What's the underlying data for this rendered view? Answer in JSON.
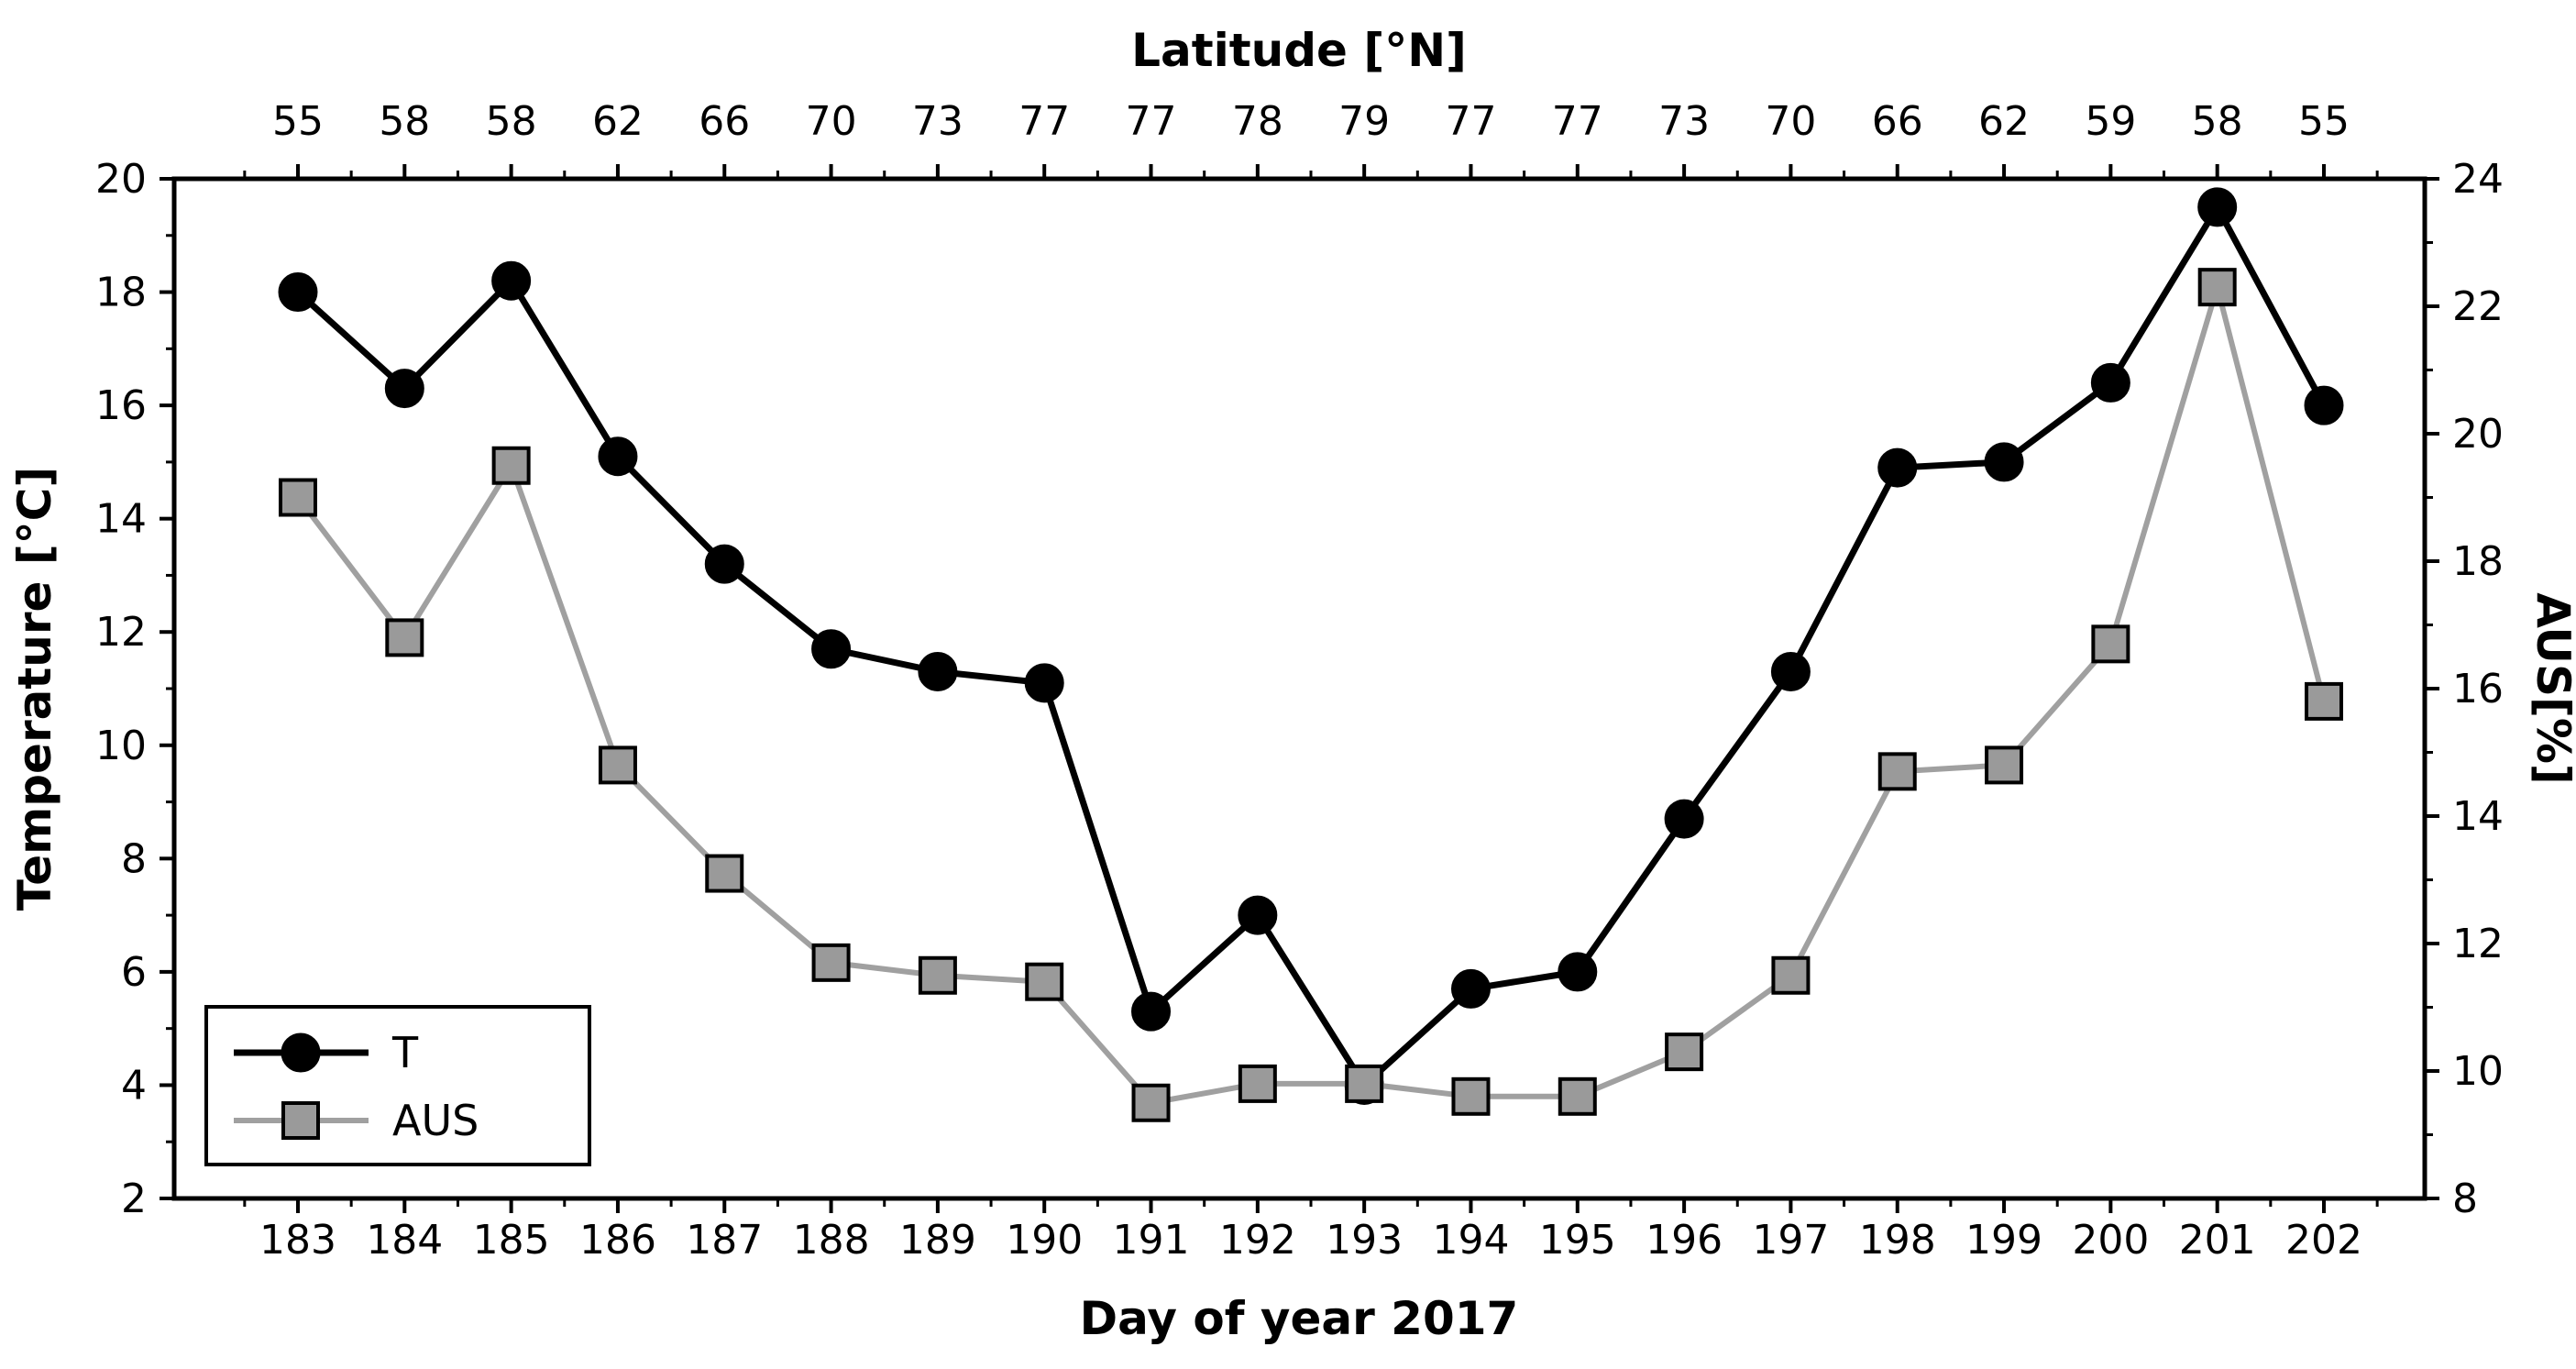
{
  "chart_data": {
    "type": "line",
    "title": "",
    "top_axis_label": "Latitude [°N]",
    "xlabel": "Day of year 2017",
    "ylabel_left": "Temperature [°C]",
    "ylabel_right": "AUS[%]",
    "grid": false,
    "x": [
      183,
      184,
      185,
      186,
      187,
      188,
      189,
      190,
      191,
      192,
      193,
      194,
      195,
      196,
      197,
      198,
      199,
      200,
      201,
      202
    ],
    "top_tick_labels": [
      "55",
      "58",
      "58",
      "62",
      "66",
      "70",
      "73",
      "77",
      "77",
      "78",
      "79",
      "77",
      "77",
      "73",
      "70",
      "66",
      "62",
      "59",
      "58",
      "55"
    ],
    "ylim_left": [
      2,
      20
    ],
    "ylim_right": [
      8,
      24
    ],
    "yticks_left": [
      2,
      4,
      6,
      8,
      10,
      12,
      14,
      16,
      18,
      20
    ],
    "yticks_right": [
      8,
      10,
      12,
      14,
      16,
      18,
      20,
      22,
      24
    ],
    "series": [
      {
        "name": "T",
        "axis": "left",
        "marker": "circle",
        "line_color": "#000000",
        "marker_fill": "#000000",
        "marker_edge": "#000000",
        "values": [
          18.0,
          16.3,
          18.2,
          15.1,
          13.2,
          11.7,
          11.3,
          11.1,
          5.3,
          7.0,
          4.0,
          5.7,
          6.0,
          8.7,
          11.3,
          14.9,
          15.0,
          16.4,
          19.5,
          16.0
        ]
      },
      {
        "name": "AUS",
        "axis": "right",
        "marker": "square",
        "line_color": "#a0a0a0",
        "marker_fill": "#9a9a9a",
        "marker_edge": "#000000",
        "values": [
          19.0,
          16.8,
          19.5,
          14.8,
          13.1,
          11.7,
          11.5,
          11.4,
          9.5,
          9.8,
          9.8,
          9.6,
          9.6,
          10.3,
          11.5,
          14.7,
          14.8,
          16.7,
          22.3,
          15.8
        ]
      }
    ],
    "legend": {
      "position": "lower-left",
      "entries": [
        "T",
        "AUS"
      ]
    }
  }
}
